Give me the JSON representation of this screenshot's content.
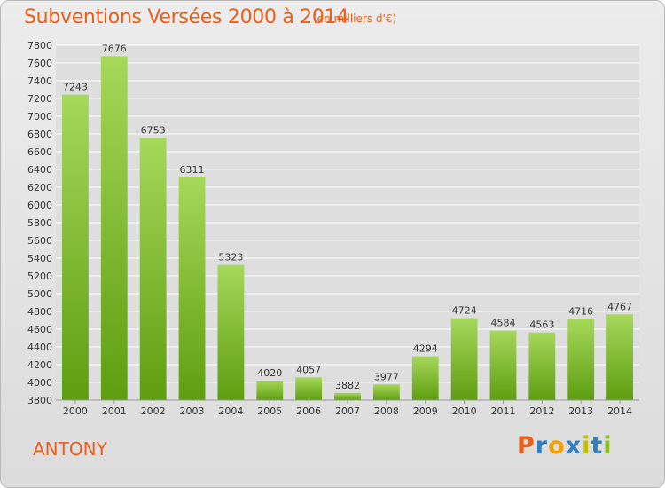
{
  "header": {
    "title": "Subventions Versées 2000 à 2014",
    "subtitle": "(en milliers d'€)"
  },
  "footer": {
    "city": "ANTONY",
    "logo_text": "Proxiti",
    "logo_letters": [
      "P",
      "r",
      "o",
      "x",
      "i",
      "t",
      "i"
    ],
    "logo_colors": [
      "#e8601c",
      "#2f7fc1",
      "#f0a000",
      "#2f7fc1",
      "#c0c000",
      "#2f7fc1",
      "#8cbf26"
    ]
  },
  "colors": {
    "bar_top": "#a6d85a",
    "bar_bottom": "#5e9e10",
    "accent": "#e8601c",
    "grid": "#ffffff",
    "plot_bg": "#dedede"
  },
  "chart_data": {
    "type": "bar",
    "categories": [
      "2000",
      "2001",
      "2002",
      "2003",
      "2004",
      "2005",
      "2006",
      "2007",
      "2008",
      "2009",
      "2010",
      "2011",
      "2012",
      "2013",
      "2014"
    ],
    "values": [
      7243,
      7676,
      6753,
      6311,
      5323,
      4020,
      4057,
      3882,
      3977,
      4294,
      4724,
      4584,
      4563,
      4716,
      4767
    ],
    "ylim": [
      3800,
      7800
    ],
    "ytick_step": 200,
    "grid": true,
    "title": "Subventions Versées 2000 à 2014",
    "xlabel": "",
    "ylabel": ""
  }
}
